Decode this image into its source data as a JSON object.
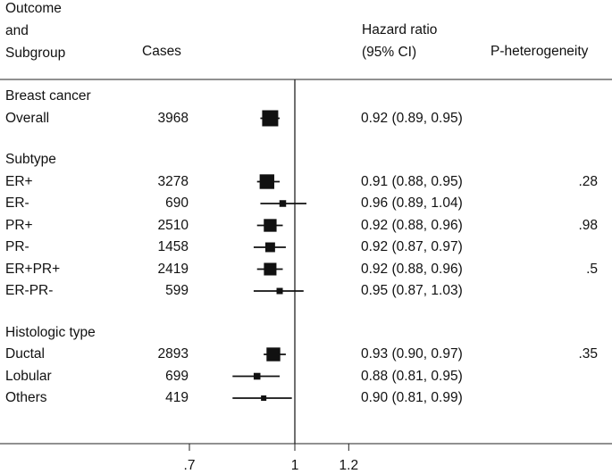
{
  "chart_data": {
    "type": "forest",
    "headers": {
      "outcome": "Outcome\nand\nSubgroup",
      "cases": "Cases",
      "hr": "Hazard ratio\n(95% CI)",
      "p": "P-heterogeneity"
    },
    "x_axis": {
      "scale": "log",
      "ticks": [
        0.7,
        1,
        1.2
      ],
      "tick_labels": [
        ".7",
        "1",
        "1.2"
      ],
      "reference_line": 1
    },
    "rows": [
      {
        "type": "heading",
        "label": "Breast cancer"
      },
      {
        "type": "data",
        "label": "Overall",
        "cases": "3968",
        "hr": 0.92,
        "lo": 0.89,
        "hi": 0.95,
        "hr_text": "0.92 (0.89, 0.95)",
        "p": ""
      },
      {
        "type": "gap"
      },
      {
        "type": "heading",
        "label": "Subtype"
      },
      {
        "type": "data",
        "label": "ER+",
        "cases": "3278",
        "hr": 0.91,
        "lo": 0.88,
        "hi": 0.95,
        "hr_text": "0.91 (0.88, 0.95)",
        "p": ".28"
      },
      {
        "type": "data",
        "label": "ER-",
        "cases": "690",
        "hr": 0.96,
        "lo": 0.89,
        "hi": 1.04,
        "hr_text": "0.96 (0.89, 1.04)",
        "p": ""
      },
      {
        "type": "data",
        "label": "PR+",
        "cases": "2510",
        "hr": 0.92,
        "lo": 0.88,
        "hi": 0.96,
        "hr_text": "0.92 (0.88, 0.96)",
        "p": ".98"
      },
      {
        "type": "data",
        "label": "PR-",
        "cases": "1458",
        "hr": 0.92,
        "lo": 0.87,
        "hi": 0.97,
        "hr_text": "0.92 (0.87, 0.97)",
        "p": ""
      },
      {
        "type": "data",
        "label": "ER+PR+",
        "cases": "2419",
        "hr": 0.92,
        "lo": 0.88,
        "hi": 0.96,
        "hr_text": "0.92 (0.88, 0.96)",
        "p": ".5"
      },
      {
        "type": "data",
        "label": "ER-PR-",
        "cases": "599",
        "hr": 0.95,
        "lo": 0.87,
        "hi": 1.03,
        "hr_text": "0.95 (0.87, 1.03)",
        "p": ""
      },
      {
        "type": "gap"
      },
      {
        "type": "heading",
        "label": "Histologic type"
      },
      {
        "type": "data",
        "label": "Ductal",
        "cases": "2893",
        "hr": 0.93,
        "lo": 0.9,
        "hi": 0.97,
        "hr_text": "0.93 (0.90, 0.97)",
        "p": ".35"
      },
      {
        "type": "data",
        "label": "Lobular",
        "cases": "699",
        "hr": 0.88,
        "lo": 0.81,
        "hi": 0.95,
        "hr_text": "0.88 (0.81, 0.95)",
        "p": ""
      },
      {
        "type": "data",
        "label": "Others",
        "cases": "419",
        "hr": 0.9,
        "lo": 0.81,
        "hi": 0.99,
        "hr_text": "0.90 (0.81, 0.99)",
        "p": ""
      }
    ]
  }
}
